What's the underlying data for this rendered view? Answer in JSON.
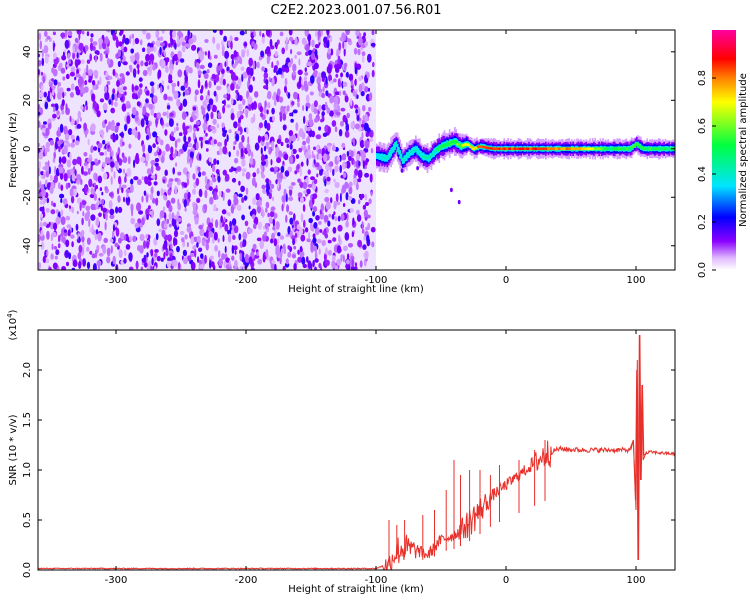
{
  "title": "C2E2.2023.001.07.56.R01",
  "chart_data": [
    {
      "type": "heatmap",
      "xlabel": "Height of straight line (km)",
      "ylabel": "Frequency (Hz)",
      "xlim": [
        -360,
        130
      ],
      "ylim": [
        -50,
        49
      ],
      "x_ticks": [
        -300,
        -200,
        -100,
        0,
        100
      ],
      "y_ticks": [
        -40,
        -20,
        0,
        20,
        40
      ],
      "colorbar": {
        "label": "Normalized spectral amplitude",
        "range": [
          0,
          1
        ],
        "ticks": [
          "0.0",
          "0.2",
          "0.4",
          "0.6",
          "0.8"
        ],
        "colormap": [
          "#ffffff",
          "#8a00ff",
          "#0000ff",
          "#00e5ff",
          "#00ff40",
          "#ffff00",
          "#ff8000",
          "#ff0000",
          "#ff00a0"
        ]
      },
      "regions": [
        {
          "x": [
            -360,
            -100
          ],
          "description": "broadband noise, amplitude ~0.1-0.25 across all frequencies"
        },
        {
          "x": [
            -100,
            130
          ],
          "description": "narrow carrier line near 0 Hz, amplitude rising to ~0.9 between -30 and 40 km"
        }
      ],
      "carrier_track": {
        "x": [
          -100,
          -92,
          -85,
          -80,
          -75,
          -70,
          -65,
          -60,
          -55,
          -50,
          -45,
          -40,
          -35,
          -30,
          -25,
          -20,
          -10,
          0,
          20,
          40,
          60,
          80,
          95,
          100,
          105,
          130
        ],
        "y": [
          -3,
          -4,
          2,
          -5,
          -2,
          0,
          -3,
          -4,
          -1,
          1,
          2,
          3,
          1,
          2,
          0,
          1,
          0,
          0,
          0,
          0,
          0,
          0,
          0,
          2,
          0,
          0
        ]
      },
      "carrier_amplitude": {
        "x": [
          -100,
          -60,
          -40,
          -20,
          0,
          20,
          40,
          60,
          80,
          100,
          130
        ],
        "values": [
          0.35,
          0.45,
          0.6,
          0.85,
          0.9,
          0.9,
          0.85,
          0.8,
          0.55,
          0.6,
          0.5
        ]
      }
    },
    {
      "type": "line",
      "xlabel": "Height of straight line (km)",
      "ylabel": "SNR (10 * v/v)",
      "y_multiplier": "(x10^4)",
      "xlim": [
        -360,
        130
      ],
      "ylim": [
        0,
        2.4
      ],
      "x_ticks": [
        -300,
        -200,
        -100,
        0,
        100
      ],
      "y_ticks": [
        "0.0",
        "0.5",
        "1.0",
        "1.5",
        "2.0"
      ],
      "series": [
        {
          "color": "#e8302b",
          "x": [
            -360,
            -200,
            -100,
            -90,
            -85,
            -80,
            -70,
            -60,
            -50,
            -40,
            -30,
            -20,
            -10,
            0,
            10,
            20,
            30,
            40,
            60,
            80,
            95,
            98,
            100,
            101,
            102,
            103,
            104,
            105,
            106,
            110,
            120,
            130
          ],
          "y": [
            0.01,
            0.01,
            0.01,
            0.06,
            0.18,
            0.22,
            0.2,
            0.15,
            0.3,
            0.35,
            0.45,
            0.6,
            0.75,
            0.85,
            0.95,
            1.05,
            1.15,
            1.21,
            1.2,
            1.2,
            1.2,
            1.3,
            0.6,
            2.1,
            0.1,
            2.35,
            0.9,
            1.85,
            1.15,
            1.18,
            1.17,
            1.16
          ]
        }
      ]
    }
  ]
}
